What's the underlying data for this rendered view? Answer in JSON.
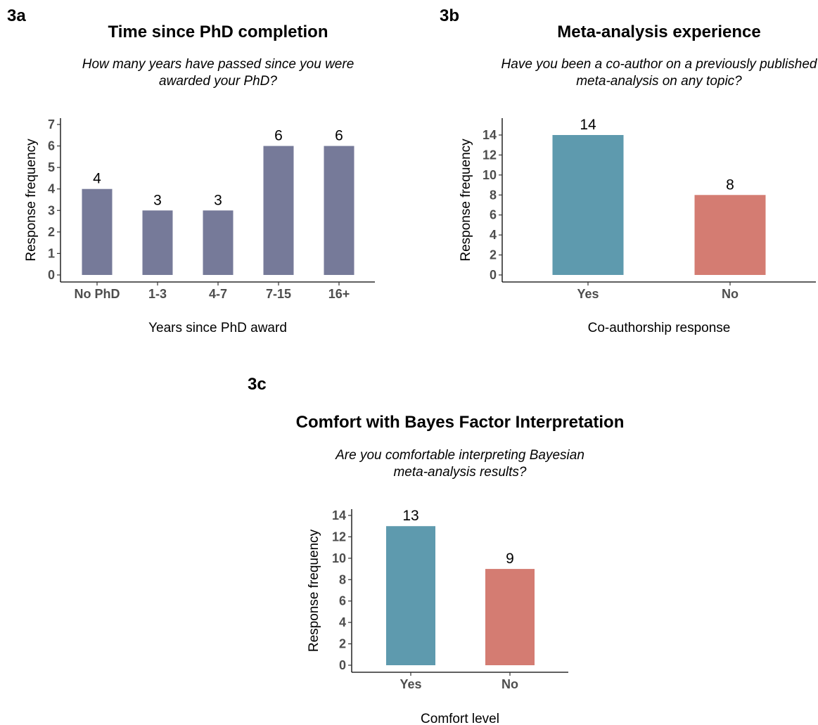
{
  "chart_data": [
    {
      "panel": "3a",
      "type": "bar",
      "title": "Time since PhD completion",
      "subtitle": [
        "How many years have passed since you were",
        "awarded your PhD?"
      ],
      "xlabel": "Years since PhD award",
      "ylabel": "Response frequency",
      "categories": [
        "No PhD",
        "1-3",
        "4-7",
        "7-15",
        "16+"
      ],
      "values": [
        4,
        3,
        3,
        6,
        6
      ],
      "ylim": [
        0,
        7
      ],
      "yticks": [
        0,
        1,
        2,
        3,
        4,
        5,
        6,
        7
      ],
      "colors": [
        "#767a99",
        "#767a99",
        "#767a99",
        "#767a99",
        "#767a99"
      ],
      "grid": false
    },
    {
      "panel": "3b",
      "type": "bar",
      "title": "Meta-analysis experience",
      "subtitle": [
        "Have you been a co-author on a previously published",
        "meta-analysis on any topic?"
      ],
      "xlabel": "Co-authorship response",
      "ylabel": "Response frequency",
      "categories": [
        "Yes",
        "No"
      ],
      "values": [
        14,
        8
      ],
      "ylim": [
        0,
        14
      ],
      "yticks": [
        0,
        2,
        4,
        6,
        8,
        10,
        12,
        14
      ],
      "colors": [
        "#5e9aae",
        "#d47c72"
      ],
      "grid": false
    },
    {
      "panel": "3c",
      "type": "bar",
      "title": "Comfort with Bayes Factor Interpretation",
      "subtitle": [
        "Are you comfortable interpreting Bayesian",
        "meta-analysis results?"
      ],
      "xlabel": "Comfort level",
      "ylabel": "Response frequency",
      "categories": [
        "Yes",
        "No"
      ],
      "values": [
        13,
        9
      ],
      "ylim": [
        0,
        14
      ],
      "yticks": [
        0,
        2,
        4,
        6,
        8,
        10,
        12,
        14
      ],
      "colors": [
        "#5e9aae",
        "#d47c72"
      ],
      "grid": false
    }
  ]
}
